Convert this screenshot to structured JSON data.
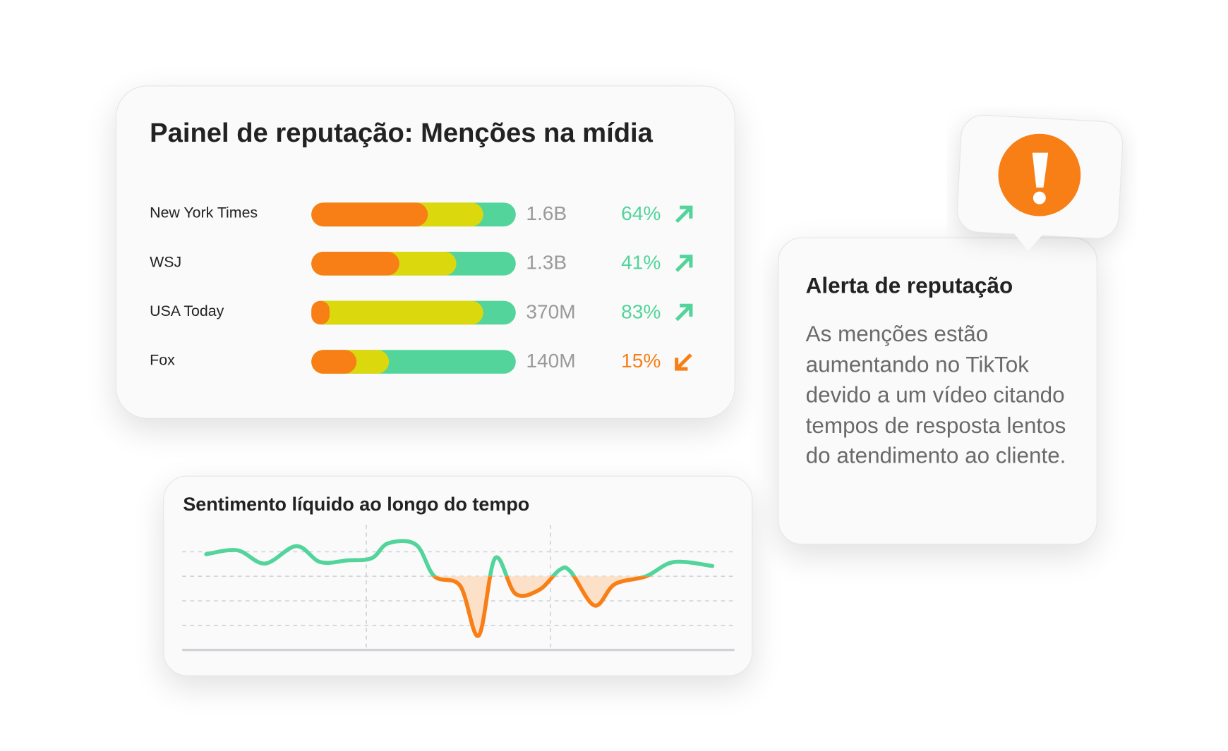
{
  "dashboard": {
    "title": "Painel de reputação: Menções na mídia",
    "segment_colors": [
      "#f77f16",
      "#dcd80e",
      "#52d49b"
    ],
    "trend_colors": {
      "up": "#52d49b",
      "down": "#f77f16"
    },
    "rows": [
      {
        "name": "New York Times",
        "segments": [
          57,
          27,
          16
        ],
        "volume": "1.6B",
        "change": "64%",
        "trend": "up"
      },
      {
        "name": "WSJ",
        "segments": [
          43,
          28,
          29
        ],
        "volume": "1.3B",
        "change": "41%",
        "trend": "up"
      },
      {
        "name": "USA Today",
        "segments": [
          9,
          75,
          16
        ],
        "volume": "370M",
        "change": "83%",
        "trend": "up"
      },
      {
        "name": "Fox",
        "segments": [
          22,
          16,
          62
        ],
        "volume": "140M",
        "change": "15%",
        "trend": "down"
      }
    ]
  },
  "chart_data": {
    "type": "line",
    "title": "Sentimento líquido ao longo do tempo",
    "x": [
      0.13,
      0.3,
      0.45,
      0.62,
      0.75,
      0.9,
      1.03,
      1.12,
      1.27,
      1.37,
      1.51,
      1.61,
      1.7,
      1.81,
      1.94,
      2.05,
      2.11,
      2.24,
      2.35,
      2.52,
      2.67,
      2.88
    ],
    "series": [
      {
        "color": "#52d49b",
        "negative_color": "#f77f16",
        "fill_color": "#fde0c8",
        "values": [
          0.9,
          1.06,
          0.52,
          1.23,
          0.58,
          0.65,
          0.74,
          1.35,
          1.29,
          0,
          -0.39,
          -2.42,
          0.74,
          -0.71,
          -0.55,
          0.26,
          0.19,
          -1.19,
          -0.32,
          0,
          0.58,
          0.42
        ]
      }
    ],
    "xlim": [
      0,
      3
    ],
    "xticks": [
      1,
      2
    ],
    "ylim": [
      -3,
      1.5
    ],
    "yticks": [
      1,
      0,
      -1,
      -2
    ],
    "grid": true
  },
  "alert": {
    "title": "Alerta de reputação",
    "body": "As menções estão aumentando no TikTok devido a um vídeo citando tempos de resposta lentos do atendimento ao cliente."
  }
}
